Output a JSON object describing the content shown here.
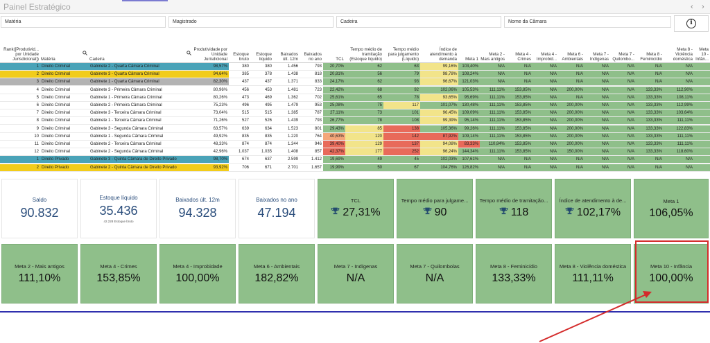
{
  "app": {
    "title": "Painel Estratégico",
    "nav_prev": "‹",
    "nav_next": "›"
  },
  "filters": [
    {
      "label": "Matéria"
    },
    {
      "label": "Magistrado"
    },
    {
      "label": "Cadeira"
    },
    {
      "label": "Nome da Câmara"
    }
  ],
  "info_label": "i",
  "table": {
    "headers": [
      "Rank([Produtivid... por Unidade Jurisdicional])",
      "Matéria",
      "Cadeira",
      "Produtividade por Unidade Jurisdicional",
      "Estoque bruto",
      "Estoque líquido",
      "Baixados últ. 12m",
      "Baixados no ano",
      "TCL",
      "Tempo médio de tramitação (Estoque líquido)",
      "Tempo médio para julgamento (Líquido)",
      "Índice de atendimento à demanda",
      "Meta 1",
      "Meta 2 - Mais antigos",
      "Meta 4 - Crimes",
      "Meta 4 - Improbid...",
      "Meta 6 - Ambientais",
      "Meta 7 - Indígenas",
      "Meta 7 - Quilombo...",
      "Meta 8 - Feminicídio",
      "Meta 8 - Violência doméstica",
      "Meta 10 - Infân..."
    ],
    "rows": [
      [
        "1",
        "Direito Criminal",
        "Gabinete 2 - Quarta Câmara Criminal",
        "98,57%",
        "380",
        "380",
        "1.456",
        "793",
        "20,70%",
        "62",
        "63",
        "99,16%",
        "103,40%",
        "N/A",
        "N/A",
        "N/A",
        "N/A",
        "N/A",
        "N/A",
        "N/A",
        "N/A",
        ""
      ],
      [
        "2",
        "Direito Criminal",
        "Gabinete 3 - Quarta Câmara Criminal",
        "94,64%",
        "385",
        "378",
        "1.438",
        "818",
        "20,81%",
        "56",
        "79",
        "98,78%",
        "108,24%",
        "N/A",
        "N/A",
        "N/A",
        "N/A",
        "N/A",
        "N/A",
        "N/A",
        "N/A",
        ""
      ],
      [
        "3",
        "Direito Criminal",
        "Gabinete 1 - Quarta Câmara Criminal",
        "82,30%",
        "437",
        "437",
        "1.371",
        "833",
        "24,17%",
        "62",
        "93",
        "96,67%",
        "121,03%",
        "N/A",
        "N/A",
        "N/A",
        "N/A",
        "N/A",
        "N/A",
        "N/A",
        "N/A",
        ""
      ],
      [
        "4",
        "Direito Criminal",
        "Gabinete 3 - Primeira Câmara Criminal",
        "80,96%",
        "456",
        "453",
        "1.481",
        "723",
        "22,42%",
        "68",
        "92",
        "102,06%",
        "105,53%",
        "111,11%",
        "153,85%",
        "N/A",
        "200,00%",
        "N/A",
        "N/A",
        "133,33%",
        "112,90%",
        ""
      ],
      [
        "5",
        "Direito Criminal",
        "Gabinete 1 - Primeira Câmara Criminal",
        "80,26%",
        "473",
        "469",
        "1.362",
        "702",
        "25,61%",
        "65",
        "78",
        "93,65%",
        "95,69%",
        "111,11%",
        "153,85%",
        "N/A",
        "N/A",
        "N/A",
        "N/A",
        "133,33%",
        "108,11%",
        ""
      ],
      [
        "6",
        "Direito Criminal",
        "Gabinete 2 - Primeira Câmara Criminal",
        "75,23%",
        "496",
        "495",
        "1.479",
        "953",
        "25,08%",
        "75",
        "117",
        "101,07%",
        "130,48%",
        "111,11%",
        "153,85%",
        "N/A",
        "200,00%",
        "N/A",
        "N/A",
        "133,33%",
        "112,99%",
        ""
      ],
      [
        "7",
        "Direito Criminal",
        "Gabinete 3 - Terceira Câmara Criminal",
        "73,04%",
        "515",
        "515",
        "1.385",
        "787",
        "27,11%",
        "73",
        "101",
        "96,45%",
        "109,09%",
        "111,11%",
        "153,85%",
        "N/A",
        "200,00%",
        "N/A",
        "N/A",
        "133,33%",
        "103,64%",
        ""
      ],
      [
        "8",
        "Direito Criminal",
        "Gabinete 1 - Terceira Câmara Criminal",
        "71,26%",
        "527",
        "526",
        "1.439",
        "793",
        "26,77%",
        "78",
        "108",
        "99,39%",
        "95,14%",
        "111,11%",
        "153,85%",
        "N/A",
        "200,00%",
        "N/A",
        "N/A",
        "133,33%",
        "111,11%",
        ""
      ],
      [
        "9",
        "Direito Criminal",
        "Gabinete 3 - Segunda Câmara Criminal",
        "63,57%",
        "639",
        "634",
        "1.523",
        "801",
        "29,43%",
        "85",
        "138",
        "105,36%",
        "99,26%",
        "111,11%",
        "153,85%",
        "N/A",
        "200,00%",
        "N/A",
        "N/A",
        "133,33%",
        "122,83%",
        ""
      ],
      [
        "10",
        "Direito Criminal",
        "Gabinete 1 - Segunda Câmara Criminal",
        "49,92%",
        "835",
        "835",
        "1.220",
        "764",
        "40,63%",
        "120",
        "142",
        "87,92%",
        "109,14%",
        "111,11%",
        "153,85%",
        "N/A",
        "200,00%",
        "N/A",
        "N/A",
        "133,33%",
        "111,11%",
        ""
      ],
      [
        "11",
        "Direito Criminal",
        "Gabinete 2 - Terceira Câmara Criminal",
        "48,33%",
        "874",
        "874",
        "1.344",
        "946",
        "39,40%",
        "129",
        "137",
        "94,08%",
        "83,33%",
        "110,84%",
        "153,85%",
        "N/A",
        "200,00%",
        "N/A",
        "N/A",
        "133,33%",
        "111,11%",
        ""
      ],
      [
        "12",
        "Direito Criminal",
        "Gabinete 2 - Segunda Câmara Criminal",
        "42,96%",
        "1.037",
        "1.035",
        "1.408",
        "857",
        "42,37%",
        "177",
        "252",
        "96,24%",
        "144,34%",
        "111,11%",
        "153,85%",
        "N/A",
        "150,00%",
        "N/A",
        "N/A",
        "133,33%",
        "118,60%",
        ""
      ],
      [
        "1",
        "Direito Privado",
        "Gabinete 3 - Quinta Câmara de Direito Privado",
        "98,70%",
        "674",
        "637",
        "2.599",
        "1.412",
        "19,69%",
        "49",
        "45",
        "102,03%",
        "107,61%",
        "N/A",
        "N/A",
        "N/A",
        "N/A",
        "N/A",
        "N/A",
        "N/A",
        "N/A",
        ""
      ],
      [
        "2",
        "Direito Privado",
        "Gabinete 2 - Quinta Câmara de Direito Privado",
        "93,92%",
        "706",
        "671",
        "2.701",
        "1.657",
        "19,99%",
        "50",
        "67",
        "104,76%",
        "126,82%",
        "N/A",
        "N/A",
        "N/A",
        "N/A",
        "N/A",
        "N/A",
        "N/A",
        "N/A",
        ""
      ]
    ]
  },
  "kpi_row1": [
    {
      "label": "Saldo",
      "value": "90.832"
    },
    {
      "label": "Estoque líquido",
      "value": "35.436",
      "sub": "42.228 Estoque bruto"
    },
    {
      "label": "Baixados últ. 12m",
      "value": "94.328"
    },
    {
      "label": "Baixados no ano",
      "value": "47.194"
    },
    {
      "label": "TCL",
      "value": "27,31%"
    },
    {
      "label": "Tempo médio para julgame...",
      "value": "90"
    },
    {
      "label": "Tempo médio de tramitação...",
      "value": "118"
    },
    {
      "label": "Índice de atendimento à de...",
      "value": "102,17%"
    },
    {
      "label": "Meta 1",
      "value": "106,05%"
    }
  ],
  "kpi_row2": [
    {
      "label": "Meta 2 - Mais antigos",
      "value": "111,10%"
    },
    {
      "label": "Meta 4 - Crimes",
      "value": "153,85%"
    },
    {
      "label": "Meta 4 - Improbidade",
      "value": "100,00%"
    },
    {
      "label": "Meta 6 - Ambientais",
      "value": "182,82%"
    },
    {
      "label": "Meta 7 - Indígenas",
      "value": "N/A"
    },
    {
      "label": "Meta 7 - Quilombolas",
      "value": "N/A"
    },
    {
      "label": "Meta 8 - Feminicídio",
      "value": "133,33%"
    },
    {
      "label": "Meta 8 - Violência doméstica",
      "value": "111,11%"
    },
    {
      "label": "Meta 10 - Infância",
      "value": "100,00%"
    }
  ],
  "colors": {
    "green": "#8fbf8a",
    "yellow": "#f2e48a",
    "red": "#e86a5a",
    "orange": "#f4a77a",
    "teal_row": "#4aa3b8",
    "gold_row": "#f2cc1a",
    "gray_row": "#b3b3b3",
    "highlight": "#d42b2b"
  }
}
